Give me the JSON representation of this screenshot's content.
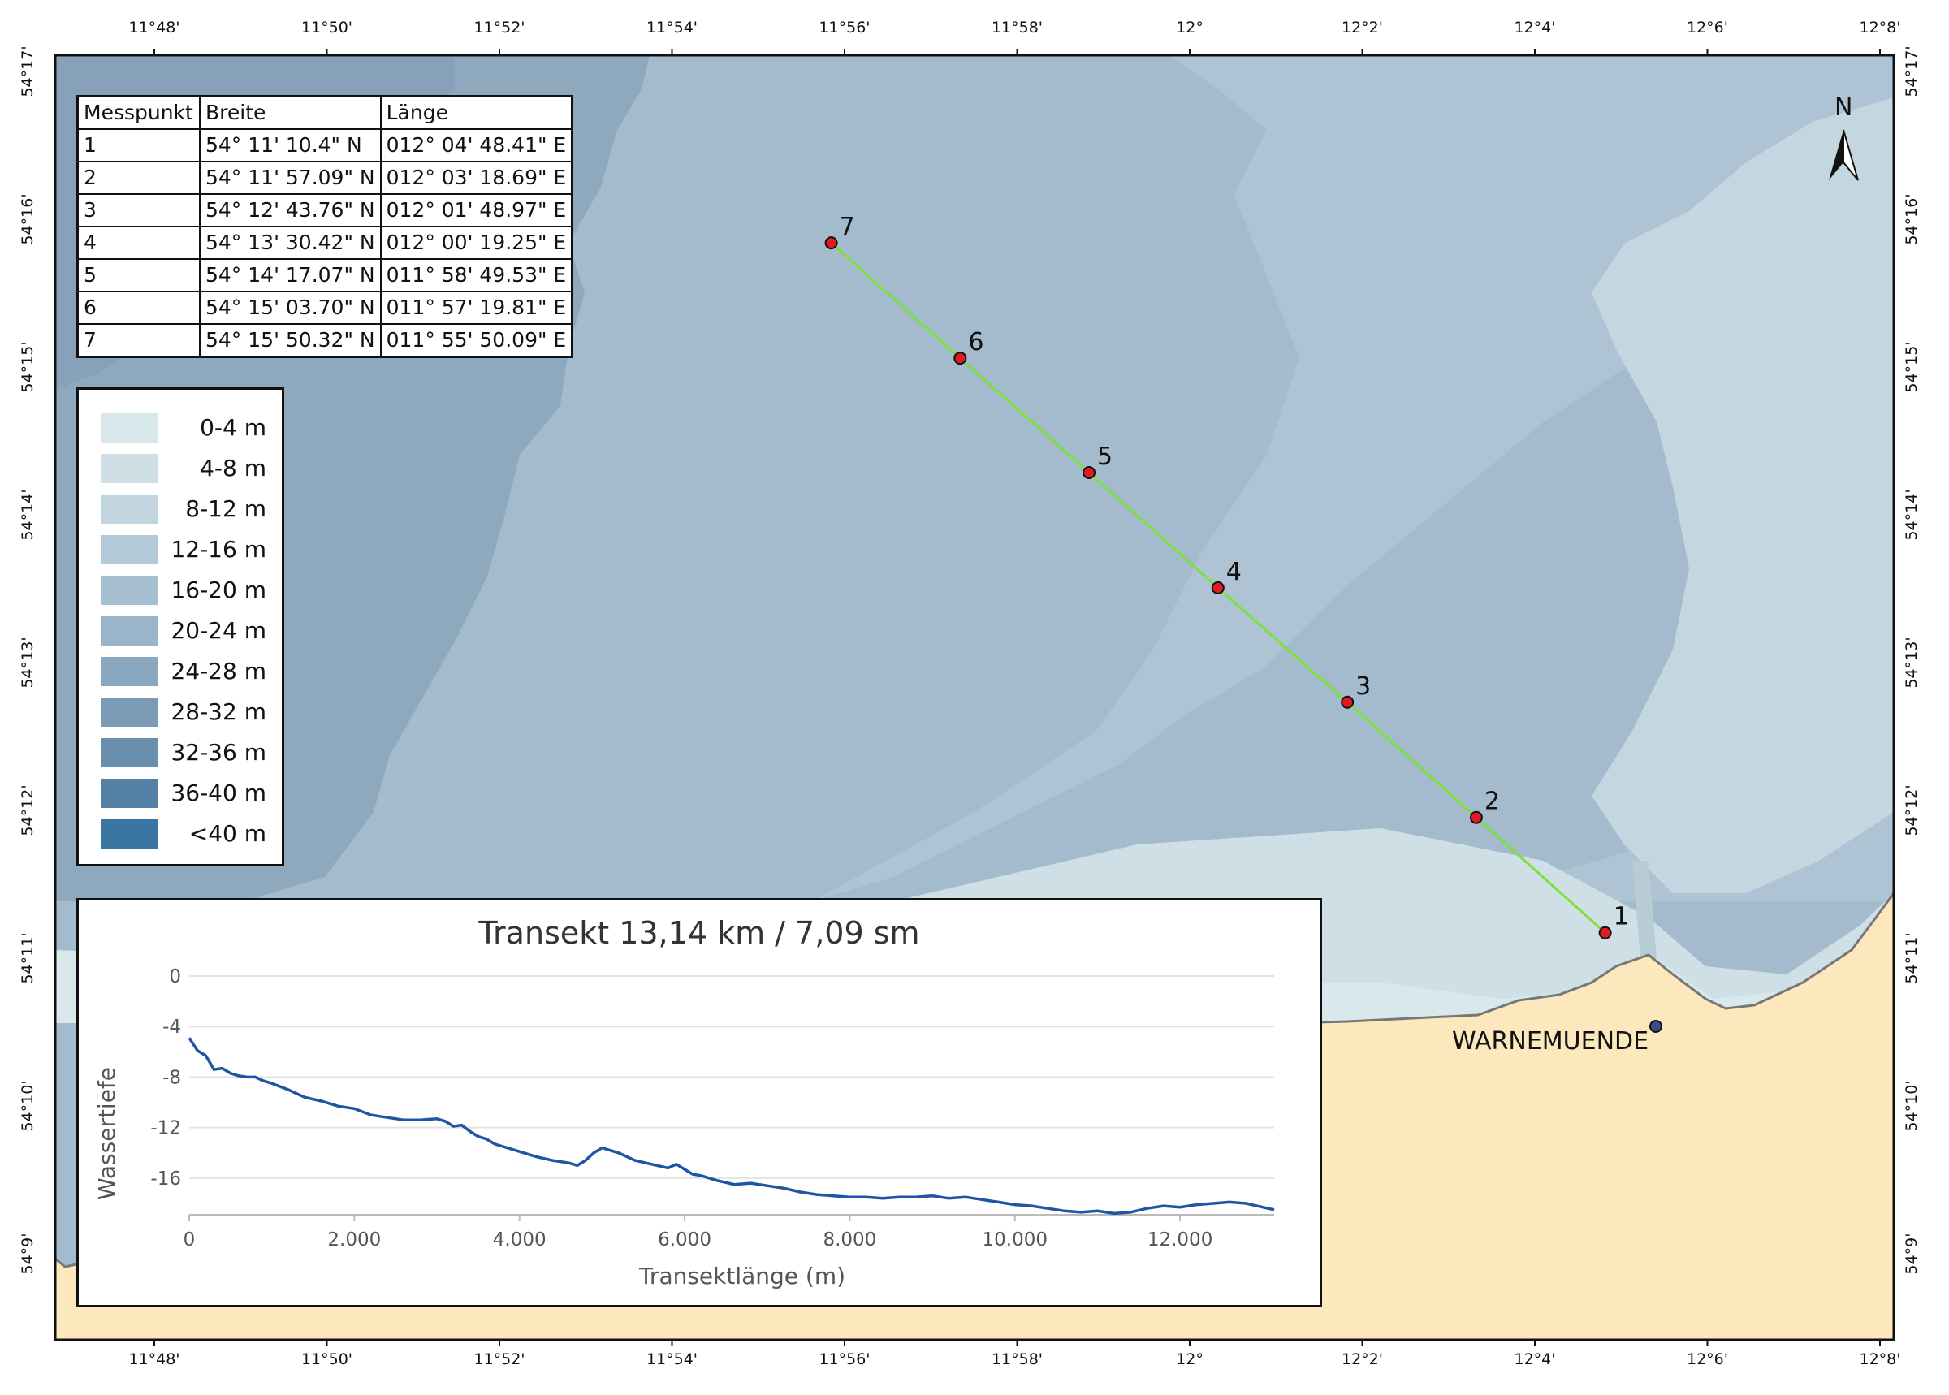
{
  "map": {
    "north_label": "N",
    "top_lon_ticks": [
      "11°48'",
      "11°50'",
      "11°52'",
      "11°54'",
      "11°56'",
      "11°58'",
      "12°",
      "12°2'",
      "12°4'",
      "12°6'",
      "12°8'"
    ],
    "side_lat_ticks": [
      "54°17'",
      "54°16'",
      "54°15'",
      "54°14'",
      "54°13'",
      "54°12'",
      "54°11'",
      "54°10'",
      "54°9'"
    ],
    "town_label": "WARNEMUENDE",
    "points": [
      {
        "id": "1",
        "lon": 12.0801,
        "lat": 54.1862
      },
      {
        "id": "2",
        "lon": 12.0552,
        "lat": 54.1992
      },
      {
        "id": "3",
        "lon": 12.0303,
        "lat": 54.2122
      },
      {
        "id": "4",
        "lon": 12.0053,
        "lat": 54.2251
      },
      {
        "id": "5",
        "lon": 11.9804,
        "lat": 54.2381
      },
      {
        "id": "6",
        "lon": 11.9555,
        "lat": 54.251
      },
      {
        "id": "7",
        "lon": 11.9306,
        "lat": 54.264
      }
    ],
    "colors": {
      "transect_line": "#7ee03a",
      "point_fill": "#e01b24",
      "land": "#fde8bd",
      "shallow": "#d5e7ea",
      "deep": "#8ea9bd"
    }
  },
  "coord_table": {
    "headers": [
      "Messpunkt",
      "Breite",
      "Länge"
    ],
    "rows": [
      [
        "1",
        "54° 11' 10.4\" N",
        "012° 04' 48.41\" E"
      ],
      [
        "2",
        "54° 11' 57.09\" N",
        "012° 03' 18.69\" E"
      ],
      [
        "3",
        "54° 12' 43.76\" N",
        "012° 01' 48.97\" E"
      ],
      [
        "4",
        "54° 13' 30.42\" N",
        "012° 00' 19.25\" E"
      ],
      [
        "5",
        "54° 14' 17.07\" N",
        "011° 58' 49.53\" E"
      ],
      [
        "6",
        "54° 15' 03.70\" N",
        "011° 57' 19.81\" E"
      ],
      [
        "7",
        "54° 15' 50.32\" N",
        "011° 55' 50.09\" E"
      ]
    ]
  },
  "depth_legend": [
    {
      "label": "0-4 m",
      "color": "#d9e8ea"
    },
    {
      "label": "4-8 m",
      "color": "#cfdfe6"
    },
    {
      "label": "8-12 m",
      "color": "#c2d5df"
    },
    {
      "label": "12-16 m",
      "color": "#b4cad8"
    },
    {
      "label": "16-20 m",
      "color": "#a7c0d1"
    },
    {
      "label": "20-24 m",
      "color": "#9ab5ca"
    },
    {
      "label": "24-28 m",
      "color": "#8aa7c0"
    },
    {
      "label": "28-32 m",
      "color": "#7b9bb7"
    },
    {
      "label": "32-36 m",
      "color": "#6a8eae"
    },
    {
      "label": "36-40 m",
      "color": "#5580a6"
    },
    {
      "label": "<40 m",
      "color": "#3b76a3"
    }
  ],
  "chart_data": {
    "type": "line",
    "title": "Transekt 13,14 km / 7,09 sm",
    "xlabel": "Transektlänge (m)",
    "ylabel": "Wassertiefe",
    "x_ticks": [
      "0",
      "2.000",
      "4.000",
      "6.000",
      "8.000",
      "10.000",
      "12.000"
    ],
    "y_ticks": [
      "0",
      "-4",
      "-8",
      "-12",
      "-16"
    ],
    "xlim": [
      0,
      13140
    ],
    "ylim": [
      -18.9,
      0
    ],
    "grid": true,
    "series": [
      {
        "color": "#1f55a5",
        "x": [
          0,
          100,
          200,
          300,
          400,
          500,
          600,
          700,
          800,
          900,
          1000,
          1200,
          1400,
          1600,
          1800,
          2000,
          2200,
          2400,
          2600,
          2800,
          3000,
          3100,
          3200,
          3300,
          3400,
          3500,
          3600,
          3700,
          3800,
          4000,
          4200,
          4400,
          4600,
          4700,
          4800,
          4900,
          5000,
          5100,
          5200,
          5400,
          5600,
          5800,
          5900,
          6000,
          6100,
          6200,
          6300,
          6400,
          6600,
          6800,
          7000,
          7200,
          7400,
          7600,
          7800,
          8000,
          8200,
          8400,
          8600,
          8800,
          9000,
          9200,
          9400,
          9600,
          9800,
          10000,
          10200,
          10400,
          10600,
          10800,
          11000,
          11200,
          11400,
          11600,
          11800,
          12000,
          12200,
          12400,
          12600,
          12800,
          13000,
          13140
        ],
        "y": [
          -4.9,
          -5.9,
          -6.3,
          -7.4,
          -7.3,
          -7.7,
          -7.9,
          -8.0,
          -8.0,
          -8.3,
          -8.5,
          -9.0,
          -9.6,
          -9.9,
          -10.3,
          -10.5,
          -11.0,
          -11.2,
          -11.4,
          -11.4,
          -11.3,
          -11.5,
          -11.9,
          -11.8,
          -12.3,
          -12.7,
          -12.9,
          -13.3,
          -13.5,
          -13.9,
          -14.3,
          -14.6,
          -14.8,
          -15.0,
          -14.6,
          -14.0,
          -13.6,
          -13.8,
          -14.0,
          -14.6,
          -14.9,
          -15.2,
          -14.9,
          -15.3,
          -15.7,
          -15.8,
          -16.0,
          -16.2,
          -16.5,
          -16.4,
          -16.6,
          -16.8,
          -17.1,
          -17.3,
          -17.4,
          -17.5,
          -17.5,
          -17.6,
          -17.5,
          -17.5,
          -17.4,
          -17.6,
          -17.5,
          -17.7,
          -17.9,
          -18.1,
          -18.2,
          -18.4,
          -18.6,
          -18.7,
          -18.6,
          -18.8,
          -18.7,
          -18.4,
          -18.2,
          -18.3,
          -18.1,
          -18.0,
          -17.9,
          -18.0,
          -18.3,
          -18.5
        ]
      }
    ]
  }
}
